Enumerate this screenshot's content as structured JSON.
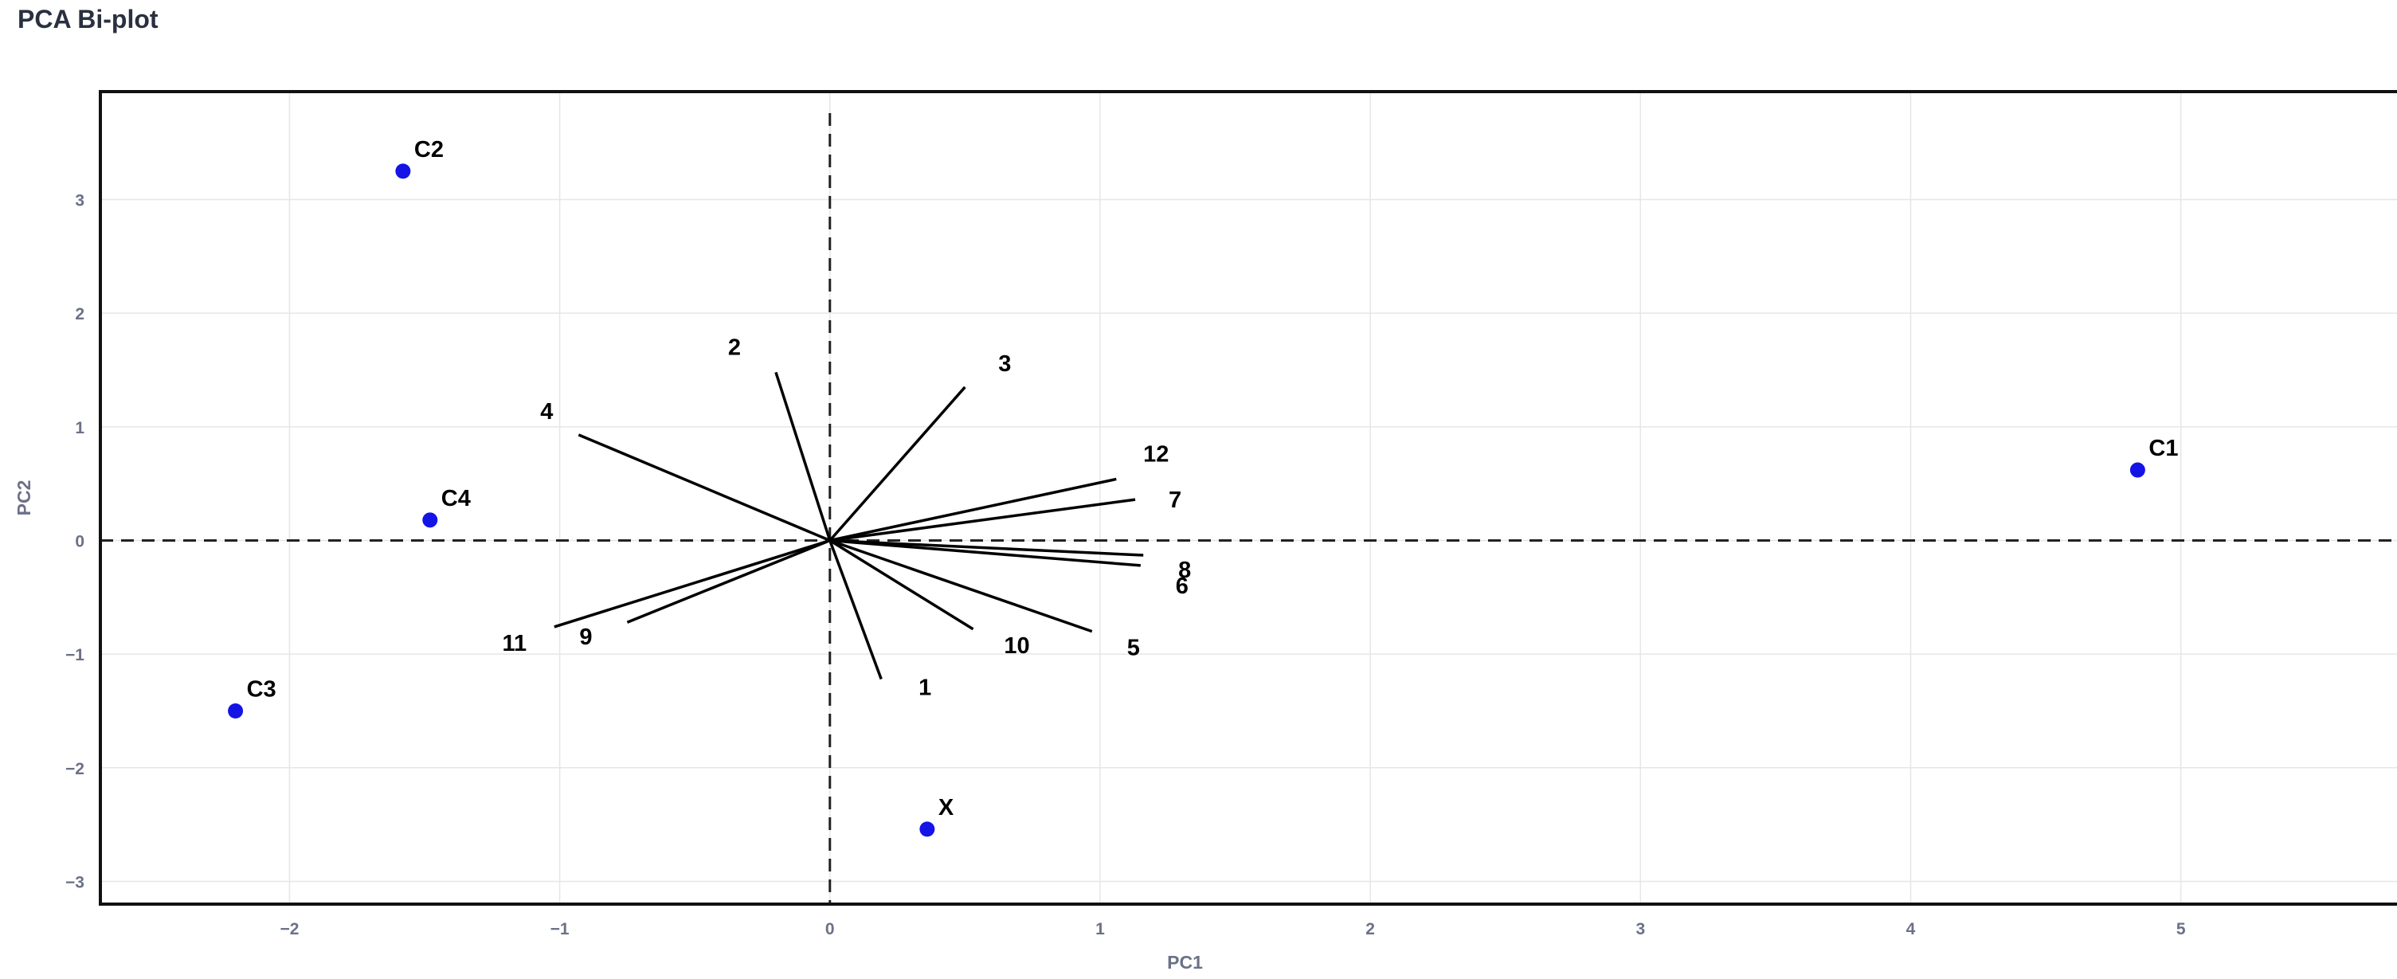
{
  "title": "PCA Bi-plot",
  "chart_data": {
    "type": "scatter",
    "title": "PCA Bi-plot",
    "xlabel": "PC1",
    "ylabel": "PC2",
    "xlim": [
      -2.7,
      5.8
    ],
    "ylim": [
      -3.2,
      3.95
    ],
    "x_ticks": [
      -2,
      -1,
      0,
      1,
      2,
      3,
      4,
      5
    ],
    "y_ticks": [
      -3,
      -2,
      -1,
      0,
      1,
      2,
      3
    ],
    "tick_labels_x": [
      "−2",
      "−1",
      "0",
      "1",
      "2",
      "3",
      "4",
      "5"
    ],
    "tick_labels_y": [
      "−3",
      "−2",
      "−1",
      "0",
      "1",
      "2",
      "3"
    ],
    "grid": true,
    "reference_lines": {
      "x": 0,
      "y": 0,
      "style": "dashed"
    },
    "point_color": "#1414e6",
    "loading_color": "#000000",
    "points": [
      {
        "name": "C1",
        "x": 4.84,
        "y": 0.62
      },
      {
        "name": "C2",
        "x": -1.58,
        "y": 3.25
      },
      {
        "name": "C3",
        "x": -2.2,
        "y": -1.5
      },
      {
        "name": "C4",
        "x": -1.48,
        "y": 0.18
      },
      {
        "name": "X",
        "x": 0.36,
        "y": -2.54
      }
    ],
    "loadings": [
      {
        "name": "1",
        "x": 0.19,
        "y": -1.22
      },
      {
        "name": "2",
        "x": -0.2,
        "y": 1.48
      },
      {
        "name": "3",
        "x": 0.5,
        "y": 1.35
      },
      {
        "name": "4",
        "x": -0.93,
        "y": 0.93
      },
      {
        "name": "5",
        "x": 0.97,
        "y": -0.8
      },
      {
        "name": "6",
        "x": 1.15,
        "y": -0.22
      },
      {
        "name": "7",
        "x": 1.13,
        "y": 0.36
      },
      {
        "name": "8",
        "x": 1.16,
        "y": -0.13
      },
      {
        "name": "9",
        "x": -0.75,
        "y": -0.72
      },
      {
        "name": "10",
        "x": 0.53,
        "y": -0.78
      },
      {
        "name": "11",
        "x": -1.02,
        "y": -0.76
      },
      {
        "name": "12",
        "x": 1.06,
        "y": 0.54
      }
    ]
  }
}
